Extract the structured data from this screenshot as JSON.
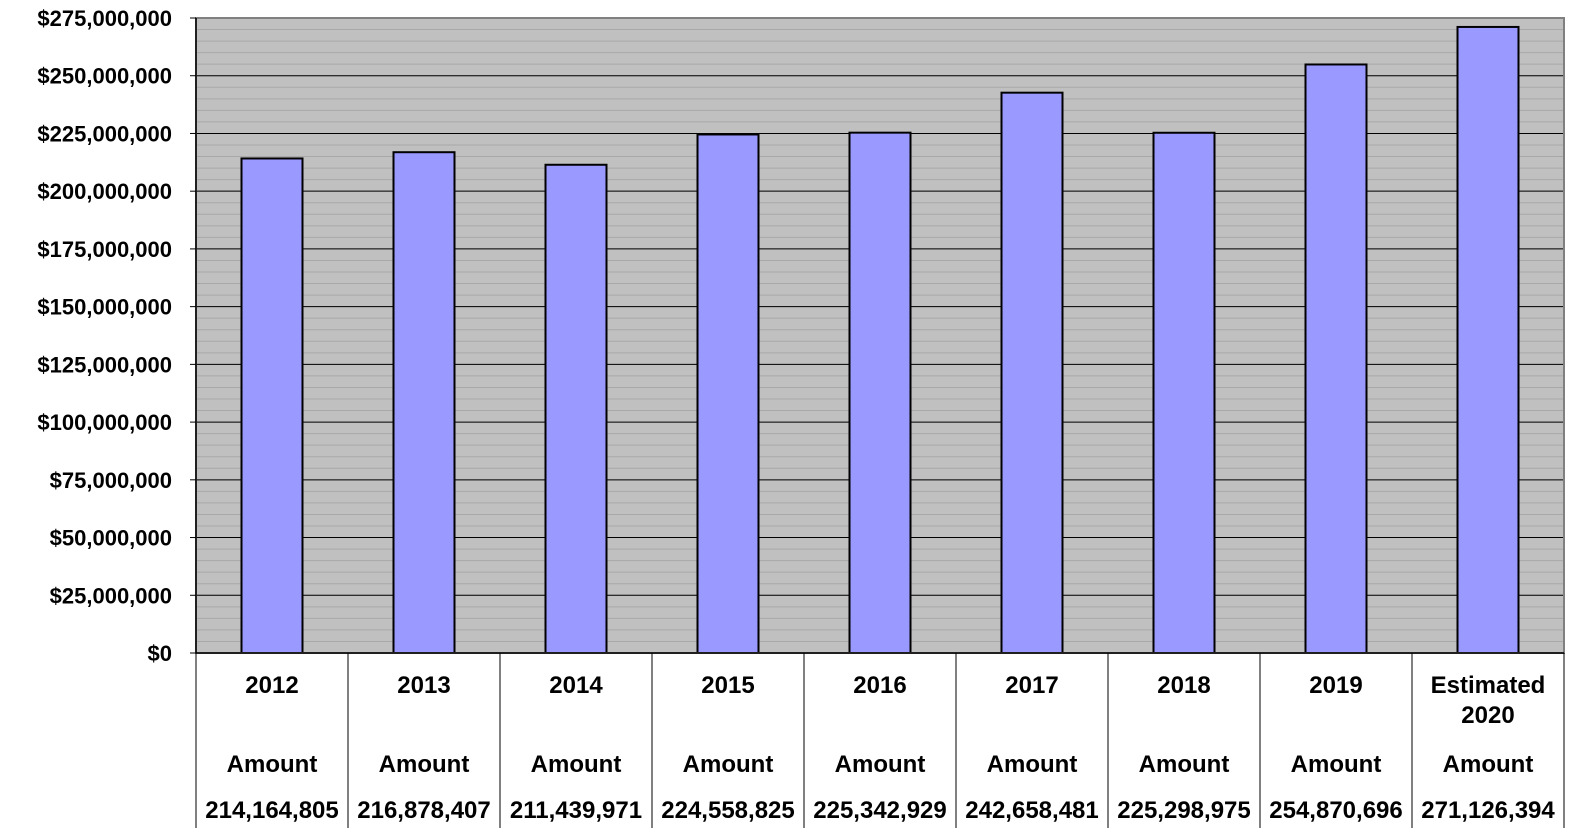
{
  "chart_data": {
    "type": "bar",
    "categories": [
      "2012",
      "2013",
      "2014",
      "2015",
      "2016",
      "2017",
      "2018",
      "2019",
      "Estimated 2020"
    ],
    "category_lines": [
      [
        "2012"
      ],
      [
        "2013"
      ],
      [
        "2014"
      ],
      [
        "2015"
      ],
      [
        "2016"
      ],
      [
        "2017"
      ],
      [
        "2018"
      ],
      [
        "2019"
      ],
      [
        "Estimated",
        "2020"
      ]
    ],
    "values": [
      214164805,
      216878407,
      211439971,
      224558825,
      225342929,
      242658481,
      225298975,
      254870696,
      271126394
    ],
    "value_labels": [
      "214,164,805",
      "216,878,407",
      "211,439,971",
      "224,558,825",
      "225,342,929",
      "242,658,481",
      "225,298,975",
      "254,870,696",
      "271,126,394"
    ],
    "row_label": "Amount",
    "ylim": [
      0,
      275000000
    ],
    "ytick_values": [
      0,
      25000000,
      50000000,
      75000000,
      100000000,
      125000000,
      150000000,
      175000000,
      200000000,
      225000000,
      250000000,
      275000000
    ],
    "ytick_labels": [
      "$0",
      "$25,000,000",
      "$50,000,000",
      "$75,000,000",
      "$100,000,000",
      "$125,000,000",
      "$150,000,000",
      "$175,000,000",
      "$200,000,000",
      "$225,000,000",
      "$250,000,000",
      "$275,000,000"
    ],
    "grid": true,
    "colors": {
      "bar": "#9999ff",
      "plot_background": "#c0c0c0",
      "bar_outline": "#000000"
    }
  }
}
